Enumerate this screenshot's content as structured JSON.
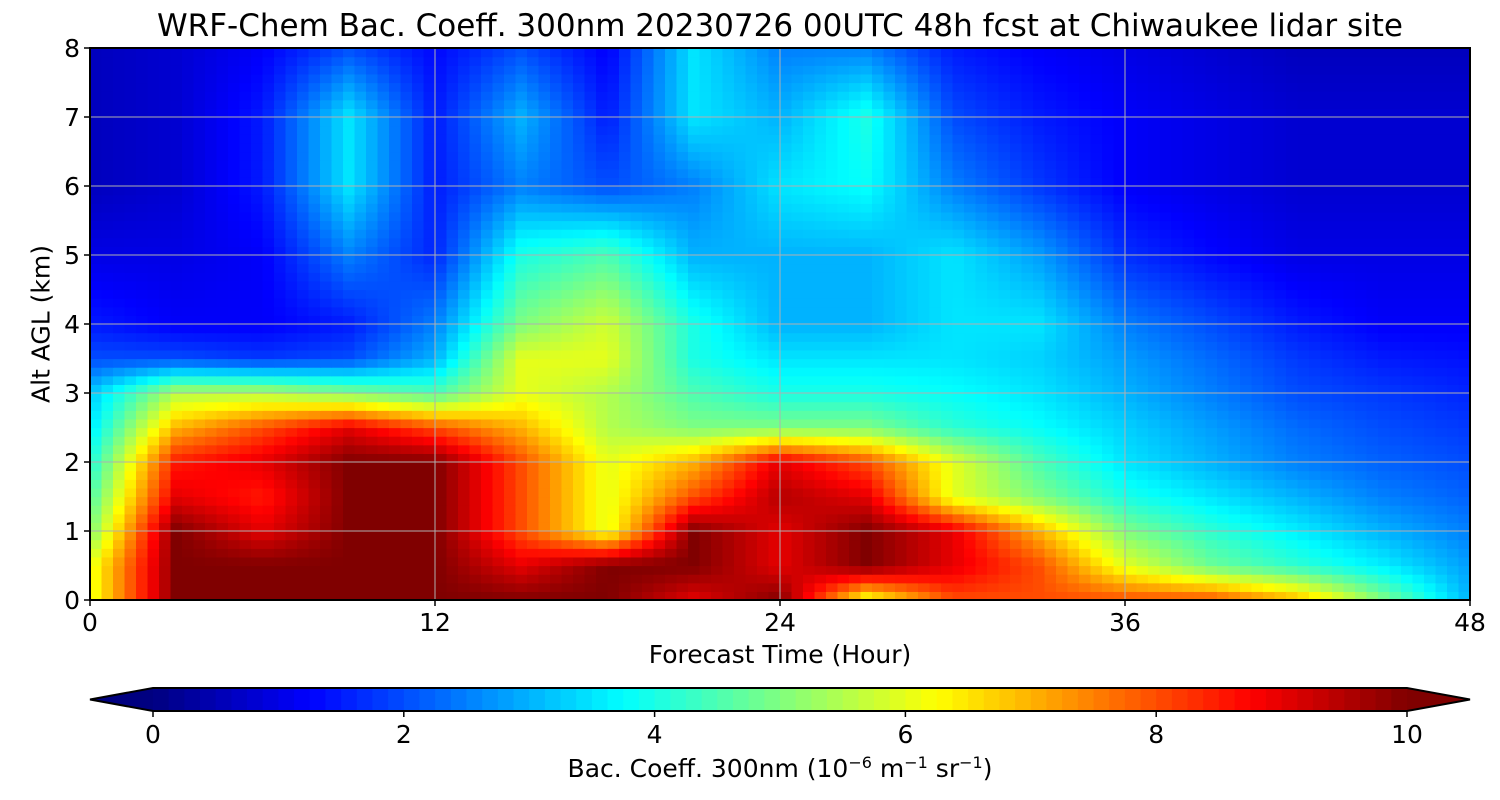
{
  "chart_data": {
    "type": "heatmap",
    "title": "WRF-Chem Bac. Coeff. 300nm  20230726 00UTC 48h fcst at Chiwaukee lidar site",
    "xlabel": "Forecast Time (Hour)",
    "ylabel": "Alt AGL (km)",
    "xlim": [
      0,
      48
    ],
    "ylim": [
      0,
      8
    ],
    "xticks": [
      0,
      12,
      24,
      36,
      48
    ],
    "yticks": [
      0,
      1,
      2,
      3,
      4,
      5,
      6,
      7,
      8
    ],
    "grid": true,
    "colormap": "jet",
    "colorbar": {
      "orientation": "horizontal",
      "range": [
        0,
        10
      ],
      "ticks": [
        0,
        2,
        4,
        6,
        8,
        10
      ],
      "extend": "both",
      "label_main": "Bac. Coeff. 300nm  (10",
      "label_exp1": "−6",
      "label_mid1": " m",
      "label_exp2": "−1",
      "label_mid2": " sr",
      "label_exp3": "−1",
      "label_end": ")"
    },
    "x": [
      0,
      3,
      6,
      9,
      12,
      15,
      18,
      21,
      24,
      27,
      30,
      33,
      36,
      39,
      42,
      45,
      48
    ],
    "y": [
      0,
      0.5,
      1,
      1.5,
      2,
      2.5,
      3,
      3.5,
      4,
      5,
      6,
      7,
      8
    ],
    "values": [
      [
        6,
        10,
        10,
        10,
        10,
        10,
        10,
        9,
        10,
        6,
        8,
        8,
        8,
        8,
        7,
        5,
        3
      ],
      [
        6,
        10,
        10,
        10,
        10,
        9,
        10,
        10,
        9,
        10,
        9,
        8,
        6,
        4.8,
        4.2,
        3.6,
        2.8
      ],
      [
        5,
        10,
        9,
        10,
        10,
        8,
        6,
        10,
        9,
        10,
        9,
        7,
        5,
        4.2,
        3.6,
        3,
        2.5
      ],
      [
        4.5,
        9,
        8.5,
        10,
        10,
        8,
        6,
        8,
        9.5,
        9,
        6,
        5,
        4,
        3.5,
        3,
        2.5,
        2.2
      ],
      [
        4,
        8.5,
        9,
        10,
        10,
        8,
        6,
        7,
        9,
        8,
        6,
        4.5,
        3.5,
        3,
        2.5,
        2.2,
        2
      ],
      [
        3.5,
        7,
        8,
        9,
        8,
        7,
        5.5,
        5,
        5,
        5,
        4.2,
        3.8,
        3.3,
        2.8,
        2.3,
        2,
        1.8
      ],
      [
        3.2,
        5.5,
        5.5,
        5,
        4.5,
        6,
        5.5,
        4.5,
        4,
        4,
        3.8,
        3.5,
        3,
        2.5,
        2,
        1.8,
        1.6
      ],
      [
        2,
        2,
        1.8,
        2,
        3,
        6,
        6,
        4,
        3.5,
        3.5,
        3.5,
        3.3,
        2.8,
        2.3,
        1.8,
        1.5,
        1.4
      ],
      [
        1.5,
        1.2,
        1.2,
        1.5,
        2.5,
        5,
        5.8,
        4,
        3,
        3,
        3.5,
        3.5,
        2.5,
        2,
        1.5,
        1.2,
        1.2
      ],
      [
        1,
        1,
        1.2,
        2.5,
        1.6,
        4,
        4.5,
        3,
        3,
        3,
        3.5,
        2.8,
        1.7,
        1.3,
        1,
        1,
        1
      ],
      [
        0.6,
        0.8,
        1.5,
        3.5,
        1.5,
        2.5,
        2,
        2.5,
        3.5,
        3.8,
        2.5,
        1.8,
        1.2,
        1,
        0.8,
        0.8,
        0.8
      ],
      [
        0.6,
        0.8,
        1.5,
        3.5,
        1.5,
        3,
        1.5,
        3.5,
        3,
        4,
        2,
        1.5,
        1.2,
        1,
        0.8,
        0.8,
        0.8
      ],
      [
        0.6,
        0.8,
        1.2,
        2,
        1.3,
        2,
        1.2,
        3.5,
        2.5,
        2.5,
        1.5,
        1.2,
        1,
        0.8,
        0.6,
        0.6,
        0.6
      ]
    ]
  }
}
